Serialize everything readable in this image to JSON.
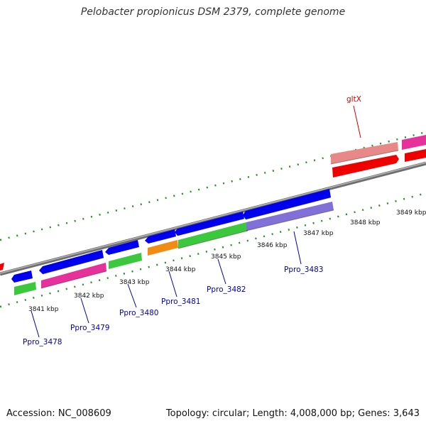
{
  "header": {
    "title": "Pelobacter propionicus DSM 2379, complete genome"
  },
  "footer": {
    "accession": "Accession: NC_008609",
    "summary": "Topology: circular; Length: 4,008,000 bp; Genes: 3,643"
  },
  "colors": {
    "background": "#ffffff",
    "backbone": "#8c8c8c",
    "tick": "#2e8b2e",
    "cds_forward": "#0000ee",
    "cds_reverse": "#3cc83c",
    "pink": "#e6309a",
    "purple": "#8070d8",
    "orange": "#f08c14",
    "salmon": "#e88888",
    "red": "#ee0000",
    "gene_label": "#0000aa",
    "highlight_label": "#cc0000"
  },
  "ticks": [
    {
      "label": "3841 kbp"
    },
    {
      "label": "3842 kbp"
    },
    {
      "label": "3843 kbp"
    },
    {
      "label": "3844 kbp"
    },
    {
      "label": "3845 kbp"
    },
    {
      "label": "3846 kbp"
    },
    {
      "label": "3847 kbp"
    },
    {
      "label": "3848 kbp"
    },
    {
      "label": "3849 kbp"
    }
  ],
  "genes": [
    {
      "label": "Ppro_3478"
    },
    {
      "label": "Ppro_3479"
    },
    {
      "label": "Ppro_3480"
    },
    {
      "label": "Ppro_3481"
    },
    {
      "label": "Ppro_3482"
    },
    {
      "label": "Ppro_3483"
    },
    {
      "label": "gltX"
    }
  ]
}
